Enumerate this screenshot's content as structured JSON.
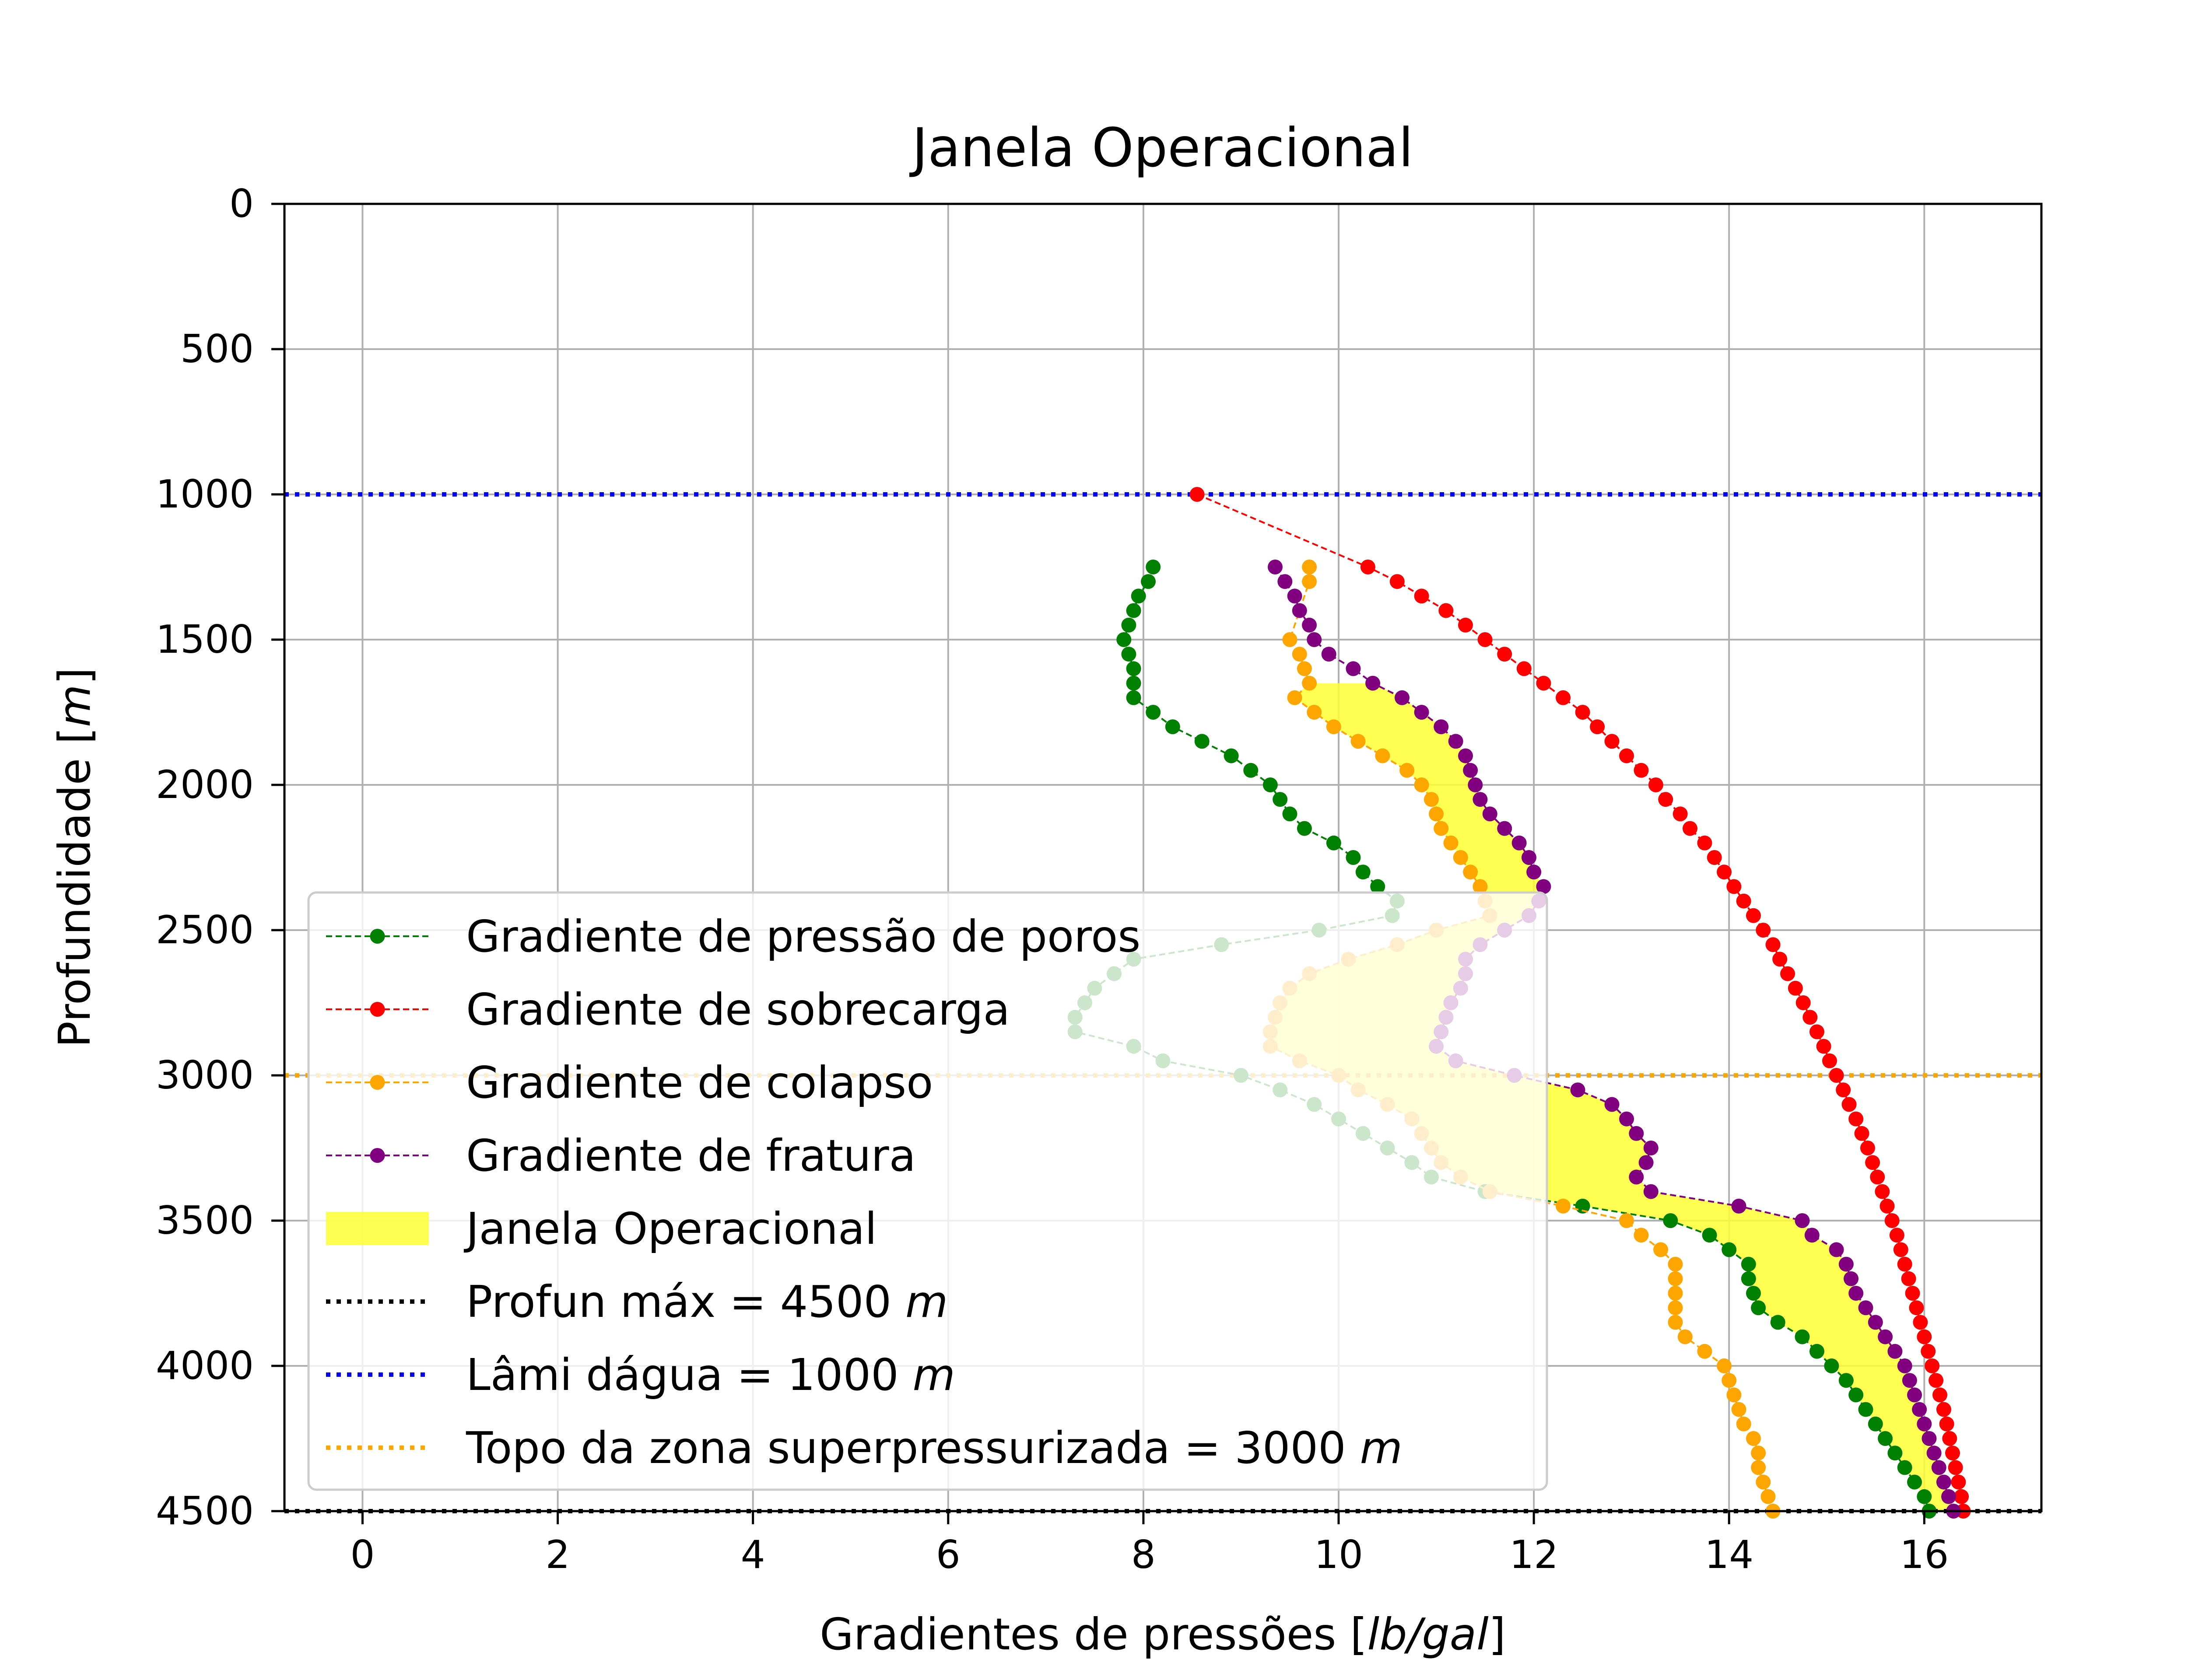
{
  "chart_data": {
    "type": "line",
    "title": "Janela Operacional",
    "xlabel": "Gradientes de pressões [lb/gal]",
    "ylabel": "Profundidade [m]",
    "xlim": [
      -0.8,
      17.2
    ],
    "ylim": [
      4500,
      0
    ],
    "y_inverted": true,
    "grid": true,
    "legend_position": "lower-left",
    "xticks": [
      0,
      2,
      4,
      6,
      8,
      10,
      12,
      14,
      16
    ],
    "yticks": [
      0,
      500,
      1000,
      1500,
      2000,
      2500,
      3000,
      3500,
      4000,
      4500
    ],
    "depth": [
      1250,
      1300,
      1350,
      1400,
      1450,
      1500,
      1550,
      1600,
      1650,
      1700,
      1750,
      1800,
      1850,
      1900,
      1950,
      2000,
      2050,
      2100,
      2150,
      2200,
      2250,
      2300,
      2350,
      2400,
      2450,
      2500,
      2550,
      2600,
      2650,
      2700,
      2750,
      2800,
      2850,
      2900,
      2950,
      3000,
      3050,
      3100,
      3150,
      3200,
      3250,
      3300,
      3350,
      3400,
      3450,
      3500,
      3550,
      3600,
      3650,
      3700,
      3750,
      3800,
      3850,
      3900,
      3950,
      4000,
      4050,
      4100,
      4150,
      4200,
      4250,
      4300,
      4350,
      4400,
      4450,
      4500
    ],
    "series": [
      {
        "name": "Gradiente de pressão de poros",
        "color": "#008000",
        "style": "dashed-dot",
        "values": [
          8.1,
          8.05,
          7.95,
          7.9,
          7.85,
          7.8,
          7.85,
          7.9,
          7.9,
          7.9,
          8.1,
          8.3,
          8.6,
          8.9,
          9.1,
          9.3,
          9.4,
          9.5,
          9.65,
          9.95,
          10.15,
          10.25,
          10.4,
          10.6,
          10.55,
          9.8,
          8.8,
          7.9,
          7.7,
          7.5,
          7.4,
          7.3,
          7.3,
          7.9,
          8.2,
          9.0,
          9.4,
          9.75,
          10.0,
          10.25,
          10.5,
          10.75,
          10.95,
          11.5,
          12.5,
          13.4,
          13.8,
          14.0,
          14.2,
          14.2,
          14.25,
          14.3,
          14.5,
          14.75,
          14.9,
          15.05,
          15.2,
          15.3,
          15.4,
          15.5,
          15.6,
          15.7,
          15.8,
          15.9,
          16.0,
          16.05
        ]
      },
      {
        "name": "Gradiente de sobrecarga",
        "color": "#ff0000",
        "style": "dashed-dot",
        "depth": [
          1000,
          1250,
          1300,
          1350,
          1400,
          1450,
          1500,
          1550,
          1600,
          1650,
          1700,
          1750,
          1800,
          1850,
          1900,
          1950,
          2000,
          2050,
          2100,
          2150,
          2200,
          2250,
          2300,
          2350,
          2400,
          2450,
          2500,
          2550,
          2600,
          2650,
          2700,
          2750,
          2800,
          2850,
          2900,
          2950,
          3000,
          3050,
          3100,
          3150,
          3200,
          3250,
          3300,
          3350,
          3400,
          3450,
          3500,
          3550,
          3600,
          3650,
          3700,
          3750,
          3800,
          3850,
          3900,
          3950,
          4000,
          4050,
          4100,
          4150,
          4200,
          4250,
          4300,
          4350,
          4400,
          4450,
          4500
        ],
        "values": [
          8.55,
          10.3,
          10.6,
          10.85,
          11.1,
          11.3,
          11.5,
          11.7,
          11.9,
          12.1,
          12.3,
          12.5,
          12.65,
          12.8,
          12.95,
          13.1,
          13.25,
          13.35,
          13.5,
          13.6,
          13.75,
          13.85,
          13.95,
          14.05,
          14.15,
          14.25,
          14.35,
          14.45,
          14.52,
          14.6,
          14.68,
          14.76,
          14.83,
          14.9,
          14.97,
          15.03,
          15.1,
          15.17,
          15.23,
          15.3,
          15.36,
          15.42,
          15.47,
          15.52,
          15.57,
          15.62,
          15.67,
          15.72,
          15.76,
          15.8,
          15.84,
          15.88,
          15.92,
          15.96,
          16.0,
          16.04,
          16.08,
          16.12,
          16.16,
          16.2,
          16.23,
          16.26,
          16.29,
          16.32,
          16.35,
          16.38,
          16.4
        ]
      },
      {
        "name": "Gradiente de colapso",
        "color": "#ffa500",
        "style": "dashed-dot",
        "values": [
          9.7,
          9.7,
          null,
          null,
          null,
          9.5,
          9.6,
          9.65,
          9.7,
          9.55,
          9.75,
          9.95,
          10.2,
          10.45,
          10.7,
          10.85,
          10.95,
          11.0,
          11.05,
          11.15,
          11.25,
          11.35,
          11.45,
          11.5,
          11.55,
          11.0,
          10.6,
          10.1,
          9.7,
          9.5,
          9.4,
          9.35,
          9.3,
          9.3,
          9.6,
          10.0,
          10.2,
          10.5,
          10.75,
          10.85,
          10.95,
          11.05,
          11.25,
          11.55,
          12.3,
          12.95,
          13.1,
          13.3,
          13.45,
          13.45,
          13.45,
          13.45,
          13.45,
          13.55,
          13.75,
          13.95,
          14.0,
          14.05,
          14.1,
          14.15,
          14.25,
          14.3,
          14.3,
          14.35,
          14.4,
          14.45
        ]
      },
      {
        "name": "Gradiente de fratura",
        "color": "#800080",
        "style": "dashed-dot",
        "values": [
          9.35,
          9.45,
          9.55,
          9.6,
          9.7,
          9.75,
          9.9,
          10.15,
          10.35,
          10.65,
          10.85,
          11.05,
          11.2,
          11.3,
          11.35,
          11.4,
          11.45,
          11.55,
          11.7,
          11.85,
          11.95,
          12.0,
          12.1,
          12.05,
          11.95,
          11.7,
          11.45,
          11.3,
          11.3,
          11.25,
          11.15,
          11.1,
          11.05,
          11.0,
          11.2,
          11.8,
          12.45,
          12.8,
          12.95,
          13.05,
          13.2,
          13.15,
          13.05,
          13.2,
          14.1,
          14.75,
          14.85,
          15.1,
          15.2,
          15.25,
          15.3,
          15.4,
          15.5,
          15.6,
          15.7,
          15.8,
          15.85,
          15.9,
          15.95,
          16.0,
          16.05,
          16.1,
          16.15,
          16.2,
          16.25,
          16.3
        ]
      }
    ],
    "fill_between": {
      "name": "Janela Operacional",
      "color": "#ffff33",
      "lower": "max(Gradiente de pressão de poros, Gradiente de colapso)",
      "upper": "Gradiente de fratura"
    },
    "hlines": [
      {
        "name": "Profun máx = 4500 m",
        "label_text": "Profun máx = 4500 ",
        "unit": "m",
        "y": 4500,
        "color": "#000000",
        "style": "dotted"
      },
      {
        "name": "Lâmi dágua = 1000 m",
        "label_text": "Lâmi dágua = 1000 ",
        "unit": "m",
        "y": 1000,
        "color": "#0000ff",
        "style": "dotted"
      },
      {
        "name": "Topo da zona superpressurizada = 3000 m",
        "label_text": "Topo da zona superpressurizada = 3000 ",
        "unit": "m",
        "y": 3000,
        "color": "#ffa500",
        "style": "dotted"
      }
    ],
    "legend_order": [
      "Gradiente de pressão de poros",
      "Gradiente de sobrecarga",
      "Gradiente de colapso",
      "Gradiente de fratura",
      "Janela Operacional",
      "Profun máx = 4500 m",
      "Lâmi dágua = 1000 m",
      "Topo da zona superpressurizada = 3000 m"
    ]
  }
}
